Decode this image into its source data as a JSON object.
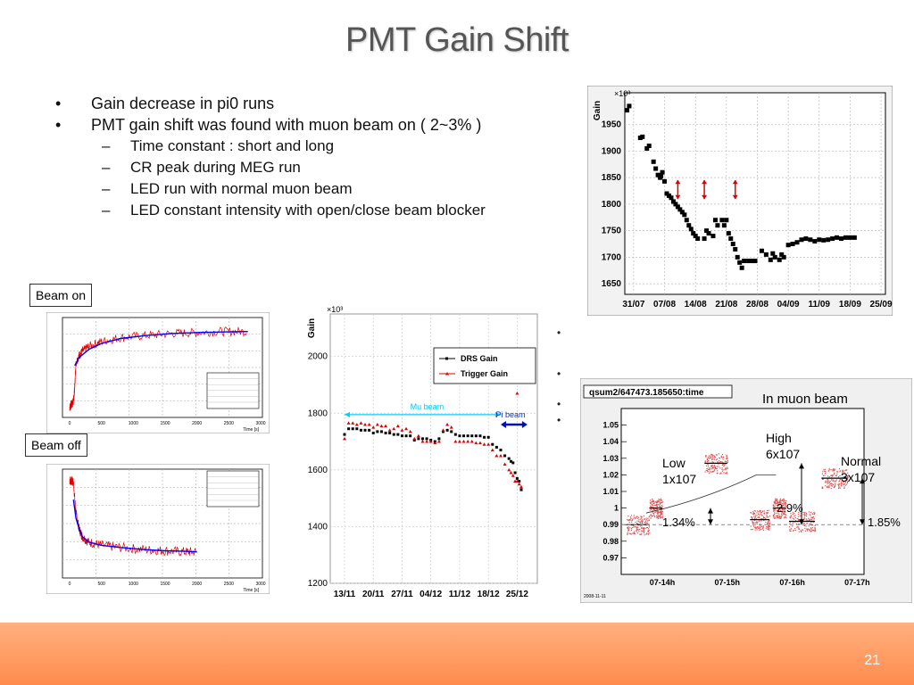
{
  "slide": {
    "title": "PMT Gain Shift",
    "page_number": "21",
    "bullets": [
      {
        "level": 1,
        "text": "Gain decrease in pi0 runs"
      },
      {
        "level": 1,
        "text": "PMT gain shift was found with muon beam on ( 2~3% )"
      },
      {
        "level": 2,
        "text": "Time constant : short and long"
      },
      {
        "level": 2,
        "text": "CR peak during MEG run"
      },
      {
        "level": 2,
        "text": "LED run with normal   muon beam"
      },
      {
        "level": 2,
        "text": "LED constant intensity with open/close beam blocker"
      }
    ],
    "labels": {
      "beam_on": "Beam on",
      "beam_off": "Beam off"
    },
    "colors": {
      "accent": "#ff8c4f",
      "footer_light": "#ffb07e"
    }
  },
  "chart_data": [
    {
      "type": "scatter",
      "id": "gain-vs-date",
      "title": "",
      "ylabel": "Gain",
      "y_multiplier": "×10³",
      "ylim": [
        1630,
        2010
      ],
      "yticks": [
        1650,
        1700,
        1750,
        1800,
        1850,
        1900,
        1950
      ],
      "xticks": [
        "31/07",
        "07/08",
        "14/08",
        "21/08",
        "28/08",
        "04/09",
        "11/09",
        "18/09",
        "25/09"
      ],
      "x_range_days": [
        -2,
        57
      ],
      "points": [
        [
          -1.5,
          1977
        ],
        [
          -1,
          1985
        ],
        [
          1.5,
          1925
        ],
        [
          2,
          1927
        ],
        [
          3,
          1905
        ],
        [
          3.5,
          1910
        ],
        [
          4.5,
          1880
        ],
        [
          5,
          1867
        ],
        [
          5.5,
          1855
        ],
        [
          6,
          1850
        ],
        [
          6.5,
          1860
        ],
        [
          7,
          1843
        ],
        [
          6.2,
          1853
        ],
        [
          7.5,
          1820
        ],
        [
          8,
          1816
        ],
        [
          8.5,
          1812
        ],
        [
          9,
          1805
        ],
        [
          9.5,
          1800
        ],
        [
          10,
          1795
        ],
        [
          10.5,
          1790
        ],
        [
          11,
          1785
        ],
        [
          11.5,
          1780
        ],
        [
          12,
          1770
        ],
        [
          12.5,
          1760
        ],
        [
          13,
          1753
        ],
        [
          13.5,
          1745
        ],
        [
          14,
          1740
        ],
        [
          14.5,
          1735
        ],
        [
          16,
          1735
        ],
        [
          16.5,
          1750
        ],
        [
          17,
          1745
        ],
        [
          18,
          1740
        ],
        [
          18.5,
          1770
        ],
        [
          19,
          1760
        ],
        [
          20,
          1770
        ],
        [
          20.5,
          1760
        ],
        [
          21,
          1770
        ],
        [
          21.5,
          1745
        ],
        [
          22,
          1735
        ],
        [
          22.5,
          1725
        ],
        [
          23,
          1715
        ],
        [
          23.5,
          1700
        ],
        [
          24,
          1690
        ],
        [
          24.5,
          1680
        ],
        [
          25,
          1693
        ],
        [
          26,
          1693
        ],
        [
          27,
          1693
        ],
        [
          27.5,
          1693
        ],
        [
          29,
          1712
        ],
        [
          30,
          1705
        ],
        [
          31,
          1695
        ],
        [
          31.5,
          1707
        ],
        [
          32,
          1700
        ],
        [
          33,
          1695
        ],
        [
          33.5,
          1705
        ],
        [
          34,
          1700
        ],
        [
          35,
          1723
        ],
        [
          36,
          1725
        ],
        [
          37,
          1728
        ],
        [
          38,
          1733
        ],
        [
          39,
          1735
        ],
        [
          40,
          1733
        ],
        [
          41,
          1730
        ],
        [
          42,
          1733
        ],
        [
          43,
          1732
        ],
        [
          44,
          1733
        ],
        [
          45,
          1735
        ],
        [
          46,
          1737
        ],
        [
          47,
          1735
        ],
        [
          48,
          1737
        ],
        [
          49,
          1737
        ],
        [
          50,
          1737
        ]
      ],
      "arrows_at_days": [
        10,
        16,
        23
      ],
      "marker_color": "#000000",
      "arrow_color": "#e00000"
    },
    {
      "type": "line",
      "id": "beam-on",
      "title": "",
      "xlabel": "Time [s]",
      "xticks": [
        "0",
        "500",
        "1000",
        "1500",
        "2000",
        "2500",
        "3000"
      ],
      "series": [
        {
          "color": "#e00000",
          "x": [
            0,
            20,
            40,
            60,
            80,
            100,
            150,
            200,
            300,
            500,
            800,
            1200,
            1600,
            2000,
            2400,
            2800
          ],
          "y": [
            0.1,
            0.12,
            0.14,
            0.16,
            0.3,
            0.55,
            0.62,
            0.66,
            0.71,
            0.76,
            0.8,
            0.82,
            0.84,
            0.85,
            0.86,
            0.86
          ]
        },
        {
          "color": "#0000ff",
          "x": [
            80,
            150,
            300,
            500,
            800,
            1200,
            1600,
            2000,
            2400,
            2800
          ],
          "y": [
            0.52,
            0.6,
            0.68,
            0.74,
            0.79,
            0.82,
            0.84,
            0.85,
            0.855,
            0.86
          ]
        }
      ]
    },
    {
      "type": "line",
      "id": "beam-off",
      "title": "",
      "xlabel": "Time [s]",
      "xticks": [
        "0",
        "500",
        "1000",
        "1500",
        "2000",
        "2500",
        "3000"
      ],
      "series": [
        {
          "color": "#e00000",
          "x": [
            0,
            30,
            60,
            100,
            150,
            200,
            300,
            500,
            800,
            1200,
            1500,
            1800,
            2000
          ],
          "y": [
            0.9,
            0.89,
            0.88,
            0.6,
            0.45,
            0.38,
            0.33,
            0.3,
            0.28,
            0.26,
            0.25,
            0.24,
            0.24
          ]
        },
        {
          "color": "#0000ff",
          "x": [
            60,
            100,
            150,
            200,
            300,
            500,
            800,
            1200,
            1500,
            1800,
            2000
          ],
          "y": [
            0.72,
            0.55,
            0.45,
            0.38,
            0.33,
            0.3,
            0.28,
            0.26,
            0.25,
            0.245,
            0.24
          ]
        }
      ]
    },
    {
      "type": "scatter",
      "id": "drs-trigger-gain",
      "ylabel": "Gain",
      "y_multiplier": "×10³",
      "ylim": [
        1200,
        2150
      ],
      "yticks": [
        1200,
        1400,
        1600,
        1800,
        2000
      ],
      "xticks": [
        "13/11",
        "20/11",
        "27/11",
        "04/12",
        "11/12",
        "18/12",
        "25/12"
      ],
      "legend": [
        "DRS Gain",
        "Trigger Gain"
      ],
      "annotations": [
        "Mu beam",
        "Pi beam"
      ],
      "series": [
        {
          "name": "DRS Gain",
          "color": "#000000",
          "x": [
            0,
            1,
            2,
            3,
            4,
            5,
            6,
            7,
            8,
            9,
            10,
            11,
            12,
            13,
            14,
            15,
            16,
            17,
            18,
            19,
            20,
            21,
            22,
            23,
            24,
            25,
            26,
            27,
            28,
            29,
            30,
            31,
            32,
            33,
            34,
            35,
            36,
            37,
            38,
            39,
            40,
            40.5,
            41,
            41.5,
            42,
            42.5,
            43
          ],
          "y": [
            1725,
            1745,
            1745,
            1745,
            1740,
            1740,
            1740,
            1730,
            1735,
            1735,
            1730,
            1730,
            1725,
            1725,
            1720,
            1720,
            1720,
            1705,
            1710,
            1710,
            1710,
            1705,
            1700,
            1710,
            1735,
            1740,
            1735,
            1725,
            1720,
            1720,
            1720,
            1720,
            1720,
            1720,
            1715,
            1715,
            1690,
            1680,
            1670,
            1650,
            1640,
            1630,
            1625,
            1590,
            1570,
            1560,
            1530
          ]
        },
        {
          "name": "Trigger Gain",
          "color": "#e00000",
          "x": [
            0,
            1,
            2,
            3,
            4,
            5,
            6,
            7,
            8,
            9,
            10,
            11,
            12,
            13,
            14,
            15,
            16,
            17,
            18,
            19,
            20,
            21,
            22,
            23,
            24,
            25,
            26,
            27,
            28,
            29,
            30,
            31,
            32,
            33,
            34,
            35,
            36,
            37,
            38,
            39,
            40,
            40.5,
            41,
            41.5,
            42,
            42.5,
            43,
            37,
            38,
            42
          ],
          "y": [
            1710,
            1765,
            1765,
            1760,
            1765,
            1760,
            1760,
            1750,
            1760,
            1755,
            1755,
            1740,
            1745,
            1755,
            1740,
            1745,
            1735,
            1710,
            1720,
            1700,
            1700,
            1700,
            1695,
            1700,
            1740,
            1760,
            1750,
            1700,
            1700,
            1700,
            1700,
            1700,
            1695,
            1695,
            1690,
            1690,
            1670,
            1650,
            1650,
            1620,
            1600,
            1590,
            1580,
            1560,
            1560,
            1550,
            1540,
            1915,
            1925,
            1870
          ]
        }
      ]
    },
    {
      "type": "scatter",
      "id": "qsum-time",
      "title": "qsum2/647473.185650:time",
      "subtitle": "In muon beam",
      "ylim": [
        0.96,
        1.06
      ],
      "yticks": [
        "1.05",
        "1.04",
        "1.03",
        "1.02",
        "1.01",
        "1",
        "0.99",
        "0.98",
        "0.97"
      ],
      "xticks": [
        "07-14h",
        "07-15h",
        "07-16h",
        "07-17h"
      ],
      "footer_note": "2008-11-11",
      "annotations": [
        {
          "text": "Low"
        },
        {
          "text": "1x107"
        },
        {
          "text": "High"
        },
        {
          "text": "6x107"
        },
        {
          "text": "Normal"
        },
        {
          "text": "3x107"
        },
        {
          "text": "1.34%"
        },
        {
          "text": "2.9%"
        },
        {
          "text": "1.85%"
        }
      ],
      "segments": [
        {
          "x": [
            0,
            0.35
          ],
          "y": 0.99
        },
        {
          "x": [
            0.35,
            0.55
          ],
          "y": 1.0
        },
        {
          "x": [
            1.2,
            1.55
          ],
          "y": 1.027
        },
        {
          "x": [
            1.9,
            2.2
          ],
          "y": 0.993
        },
        {
          "x": [
            2.25,
            2.45
          ],
          "y": 1.0
        },
        {
          "x": [
            2.5,
            2.9
          ],
          "y": 0.992
        },
        {
          "x": [
            3.0,
            3.4
          ],
          "y": 1.018
        }
      ]
    }
  ]
}
